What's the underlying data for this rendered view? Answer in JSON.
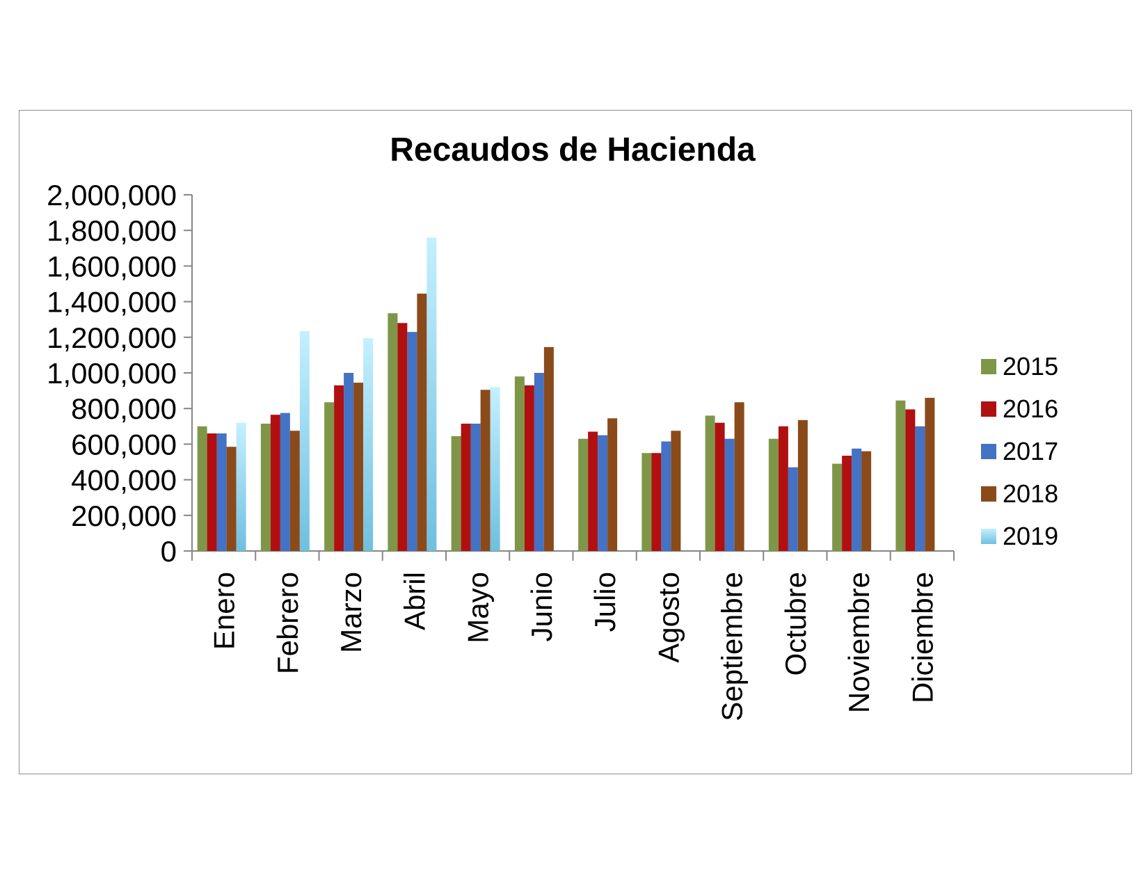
{
  "chart_data": {
    "type": "bar",
    "title": "Recaudos de Hacienda",
    "xlabel": "",
    "ylabel": "",
    "ylim": [
      0,
      2000000
    ],
    "yticks": [
      "0",
      "200,000",
      "400,000",
      "600,000",
      "800,000",
      "1,000,000",
      "1,200,000",
      "1,400,000",
      "1,600,000",
      "1,800,000",
      "2,000,000"
    ],
    "categories": [
      "Enero",
      "Febrero",
      "Marzo",
      "Abril",
      "Mayo",
      "Junio",
      "Julio",
      "Agosto",
      "Septiembre",
      "Octubre",
      "Noviembre",
      "Diciembre"
    ],
    "grid": false,
    "legend_position": "right",
    "series": [
      {
        "name": "2015",
        "color": "#7f9648",
        "values": [
          700000,
          715000,
          835000,
          1335000,
          645000,
          980000,
          630000,
          550000,
          760000,
          630000,
          490000,
          845000
        ]
      },
      {
        "name": "2016",
        "color": "#b01010",
        "values": [
          660000,
          765000,
          930000,
          1280000,
          715000,
          930000,
          670000,
          550000,
          720000,
          700000,
          535000,
          795000
        ]
      },
      {
        "name": "2017",
        "color": "#4472c4",
        "values": [
          660000,
          775000,
          1000000,
          1230000,
          715000,
          1000000,
          650000,
          615000,
          630000,
          470000,
          575000,
          700000
        ]
      },
      {
        "name": "2018",
        "color": "#8b4a1a",
        "values": [
          585000,
          675000,
          945000,
          1445000,
          905000,
          1145000,
          745000,
          675000,
          835000,
          735000,
          560000,
          860000
        ]
      },
      {
        "name": "2019",
        "color": "#aee4f7",
        "values": [
          720000,
          1235000,
          1195000,
          1760000,
          920000,
          null,
          null,
          null,
          null,
          null,
          null,
          null
        ]
      }
    ]
  }
}
